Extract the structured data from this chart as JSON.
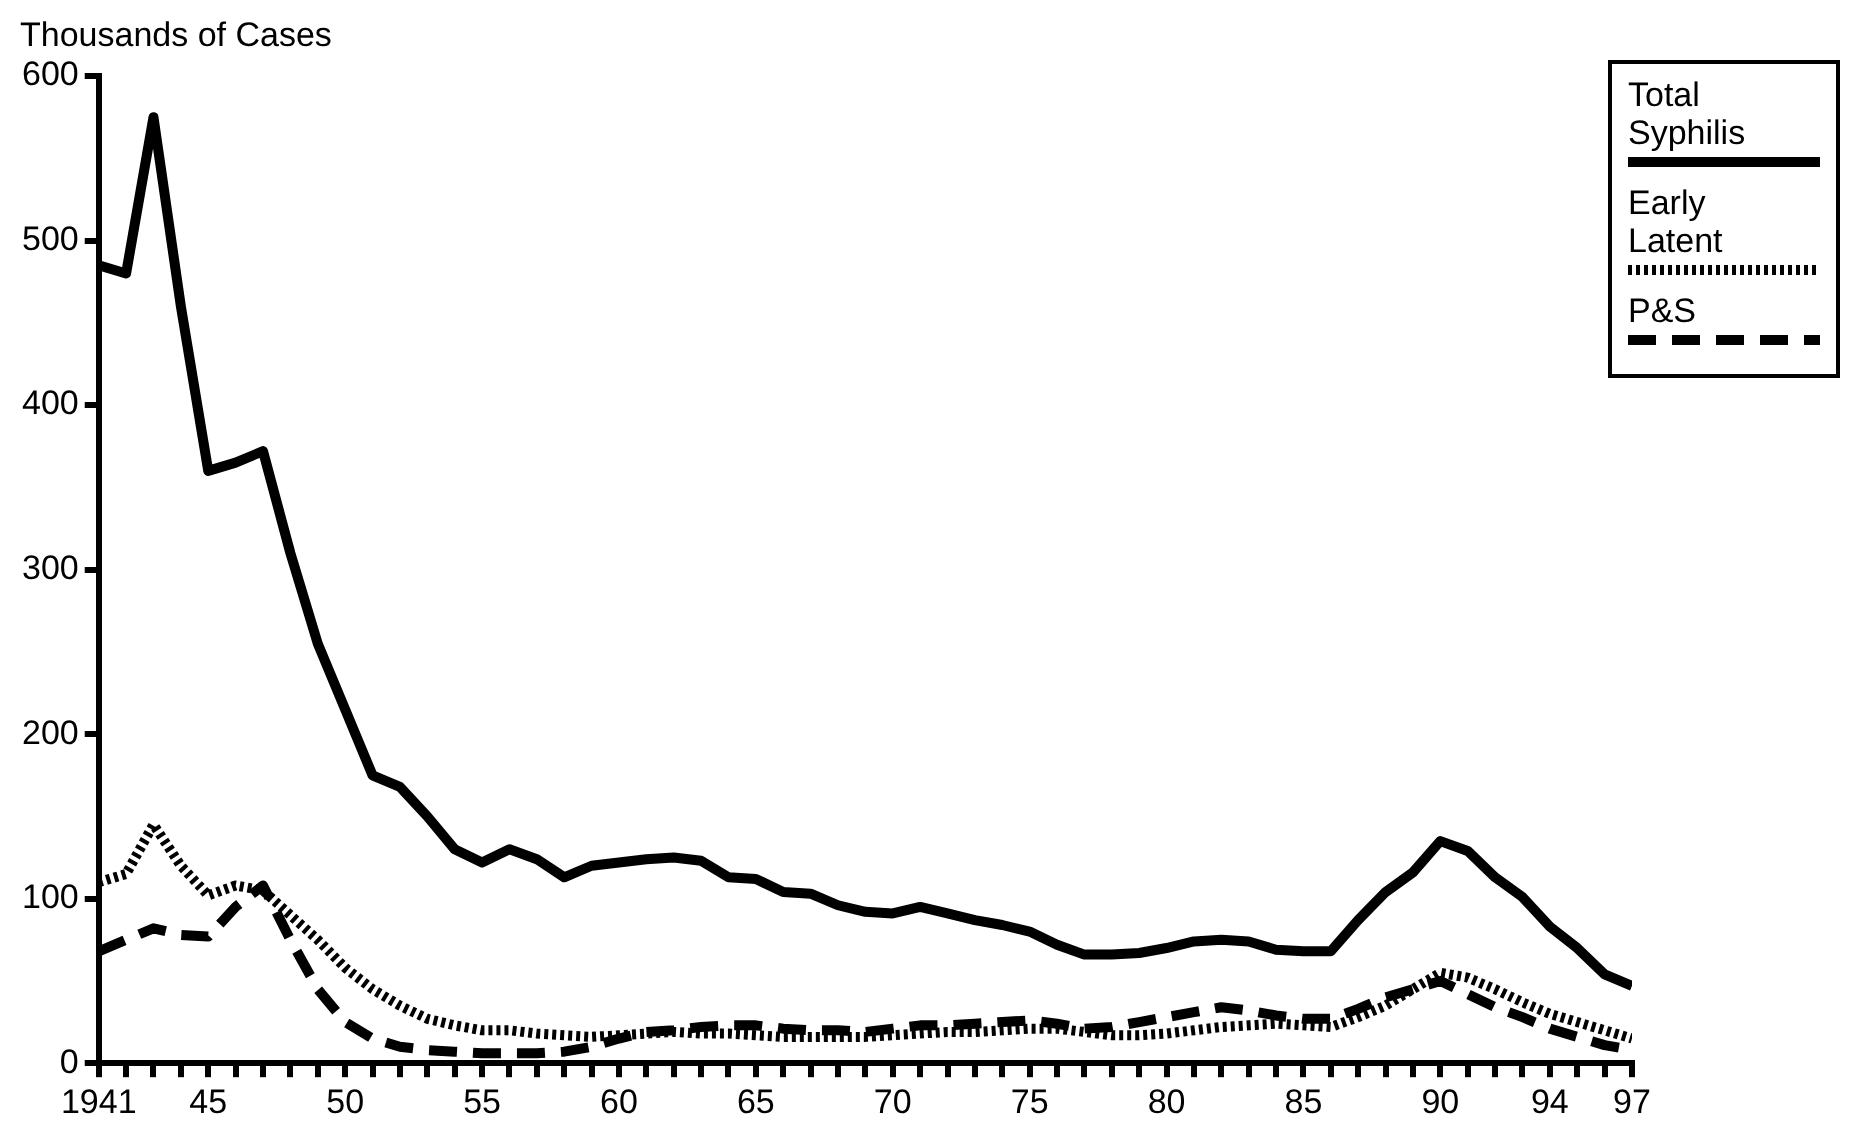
{
  "chart_data": {
    "type": "line",
    "ylabel": "Thousands of Cases",
    "x": [
      1941,
      1942,
      1943,
      1944,
      1945,
      1946,
      1947,
      1948,
      1949,
      1950,
      1951,
      1952,
      1953,
      1954,
      1955,
      1956,
      1957,
      1958,
      1959,
      1960,
      1961,
      1962,
      1963,
      1964,
      1965,
      1966,
      1967,
      1968,
      1969,
      1970,
      1971,
      1972,
      1973,
      1974,
      1975,
      1976,
      1977,
      1978,
      1979,
      1980,
      1981,
      1982,
      1983,
      1984,
      1985,
      1986,
      1987,
      1988,
      1989,
      1990,
      1991,
      1992,
      1993,
      1994,
      1995,
      1996,
      1997
    ],
    "series": [
      {
        "name": "Total Syphilis",
        "color": "#000000",
        "line_style": "solid",
        "values": [
          485,
          480,
          575,
          460,
          360,
          365,
          372,
          310,
          255,
          215,
          175,
          168,
          150,
          130,
          122,
          130,
          124,
          113,
          120,
          122,
          124,
          125,
          123,
          113,
          112,
          104,
          103,
          96,
          92,
          91,
          95,
          91,
          87,
          84,
          80,
          72,
          66,
          66,
          67,
          70,
          74,
          75,
          74,
          69,
          68,
          68,
          87,
          104,
          116,
          135,
          129,
          113,
          101,
          83,
          70,
          54,
          47
        ]
      },
      {
        "name": "Early Latent",
        "color": "#000000",
        "line_style": "dotted",
        "values": [
          110,
          115,
          145,
          120,
          102,
          108,
          105,
          90,
          75,
          58,
          45,
          35,
          27,
          23,
          20,
          20,
          18,
          17,
          16,
          17,
          18,
          19,
          18,
          18,
          17,
          16,
          16,
          16,
          16,
          17,
          18,
          19,
          19,
          20,
          21,
          21,
          19,
          17,
          17,
          18,
          20,
          22,
          23,
          24,
          23,
          22,
          28,
          35,
          45,
          55,
          52,
          45,
          37,
          30,
          25,
          20,
          15
        ]
      },
      {
        "name": "P&S",
        "color": "#000000",
        "line_style": "dashed",
        "values": [
          68,
          75,
          82,
          78,
          77,
          95,
          108,
          75,
          45,
          25,
          15,
          10,
          8,
          7,
          6,
          6,
          6,
          7,
          10,
          15,
          19,
          20,
          22,
          23,
          23,
          21,
          20,
          20,
          19,
          21,
          23,
          23,
          24,
          25,
          26,
          24,
          21,
          22,
          25,
          28,
          31,
          34,
          32,
          29,
          27,
          27,
          33,
          40,
          45,
          50,
          42,
          34,
          28,
          21,
          16,
          11,
          8
        ]
      }
    ],
    "xlim": [
      1941,
      1997
    ],
    "xticks": [
      {
        "value": 1941,
        "label": "1941"
      },
      {
        "value": 1942,
        "label": null
      },
      {
        "value": 1943,
        "label": null
      },
      {
        "value": 1944,
        "label": null
      },
      {
        "value": 1945,
        "label": "45"
      },
      {
        "value": 1946,
        "label": null
      },
      {
        "value": 1947,
        "label": null
      },
      {
        "value": 1948,
        "label": null
      },
      {
        "value": 1949,
        "label": null
      },
      {
        "value": 1950,
        "label": "50"
      },
      {
        "value": 1951,
        "label": null
      },
      {
        "value": 1952,
        "label": null
      },
      {
        "value": 1953,
        "label": null
      },
      {
        "value": 1954,
        "label": null
      },
      {
        "value": 1955,
        "label": "55"
      },
      {
        "value": 1956,
        "label": null
      },
      {
        "value": 1957,
        "label": null
      },
      {
        "value": 1958,
        "label": null
      },
      {
        "value": 1959,
        "label": null
      },
      {
        "value": 1960,
        "label": "60"
      },
      {
        "value": 1961,
        "label": null
      },
      {
        "value": 1962,
        "label": null
      },
      {
        "value": 1963,
        "label": null
      },
      {
        "value": 1964,
        "label": null
      },
      {
        "value": 1965,
        "label": "65"
      },
      {
        "value": 1966,
        "label": null
      },
      {
        "value": 1967,
        "label": null
      },
      {
        "value": 1968,
        "label": null
      },
      {
        "value": 1969,
        "label": null
      },
      {
        "value": 1970,
        "label": "70"
      },
      {
        "value": 1971,
        "label": null
      },
      {
        "value": 1972,
        "label": null
      },
      {
        "value": 1973,
        "label": null
      },
      {
        "value": 1974,
        "label": null
      },
      {
        "value": 1975,
        "label": "75"
      },
      {
        "value": 1976,
        "label": null
      },
      {
        "value": 1977,
        "label": null
      },
      {
        "value": 1978,
        "label": null
      },
      {
        "value": 1979,
        "label": null
      },
      {
        "value": 1980,
        "label": "80"
      },
      {
        "value": 1981,
        "label": null
      },
      {
        "value": 1982,
        "label": null
      },
      {
        "value": 1983,
        "label": null
      },
      {
        "value": 1984,
        "label": null
      },
      {
        "value": 1985,
        "label": "85"
      },
      {
        "value": 1986,
        "label": null
      },
      {
        "value": 1987,
        "label": null
      },
      {
        "value": 1988,
        "label": null
      },
      {
        "value": 1989,
        "label": null
      },
      {
        "value": 1990,
        "label": "90"
      },
      {
        "value": 1991,
        "label": null
      },
      {
        "value": 1992,
        "label": null
      },
      {
        "value": 1993,
        "label": null
      },
      {
        "value": 1994,
        "label": "94"
      },
      {
        "value": 1995,
        "label": null
      },
      {
        "value": 1996,
        "label": null
      },
      {
        "value": 1997,
        "label": "97"
      }
    ],
    "ylim": [
      0,
      600
    ],
    "yticks": [
      0,
      100,
      200,
      300,
      400,
      500,
      600
    ],
    "grid": false,
    "legend": "top right",
    "marker": "none"
  }
}
